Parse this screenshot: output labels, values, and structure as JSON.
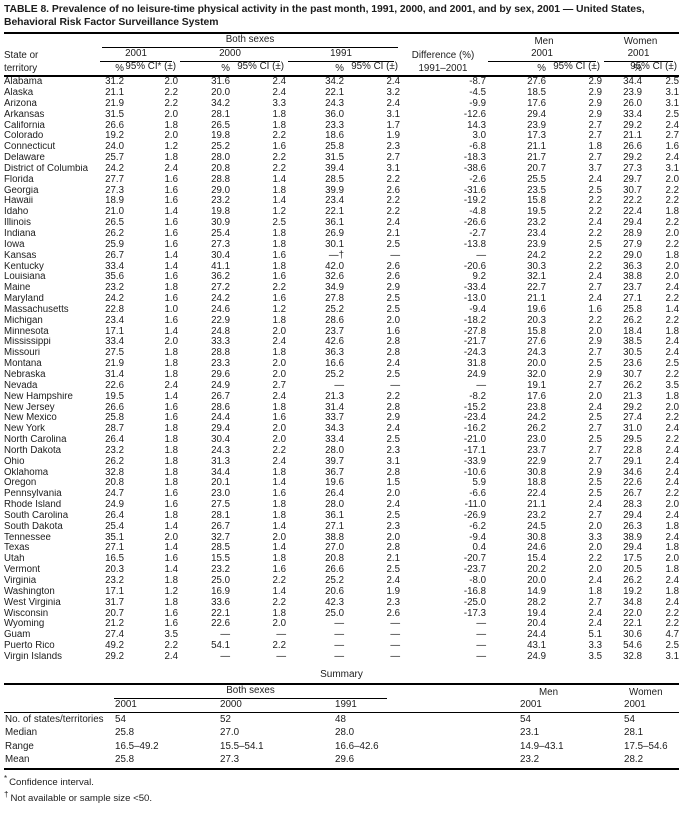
{
  "title": "TABLE 8. Prevalence of no leisure-time physical activity in the past month, 1991, 2000, and 2001, and by sex, 2001 — United States, Behavioral Risk Factor Surveillance System",
  "table": {
    "group_headers": {
      "both_sexes": "Both sexes",
      "men": "Men",
      "women": "Women",
      "difference": "Difference (%)"
    },
    "col_headers": {
      "state_line1": "State or",
      "state_line2": "territory",
      "y2001": "2001",
      "y2000": "2000",
      "y1991": "1991",
      "men_year": "2001",
      "women_year": "2001",
      "pct": "%",
      "ci_star": "95% CI* (±)",
      "ci": "95% CI (±)",
      "diff_years": "1991–2001"
    },
    "rows": [
      [
        "Alabama",
        "31.2",
        "2.0",
        "31.6",
        "2.4",
        "34.2",
        "2.4",
        "-8.7",
        "27.6",
        "2.9",
        "34.4",
        "2.5"
      ],
      [
        "Alaska",
        "21.1",
        "2.2",
        "20.0",
        "2.4",
        "22.1",
        "3.2",
        "-4.5",
        "18.5",
        "2.9",
        "23.9",
        "3.1"
      ],
      [
        "Arizona",
        "21.9",
        "2.2",
        "34.2",
        "3.3",
        "24.3",
        "2.4",
        "-9.9",
        "17.6",
        "2.9",
        "26.0",
        "3.1"
      ],
      [
        "Arkansas",
        "31.5",
        "2.0",
        "28.1",
        "1.8",
        "36.0",
        "3.1",
        "-12.6",
        "29.4",
        "2.9",
        "33.4",
        "2.5"
      ],
      [
        "California",
        "26.6",
        "1.8",
        "26.5",
        "1.8",
        "23.3",
        "1.7",
        "14.3",
        "23.9",
        "2.7",
        "29.2",
        "2.4"
      ],
      [
        "Colorado",
        "19.2",
        "2.0",
        "19.8",
        "2.2",
        "18.6",
        "1.9",
        "3.0",
        "17.3",
        "2.7",
        "21.1",
        "2.7"
      ],
      [
        "Connecticut",
        "24.0",
        "1.2",
        "25.2",
        "1.6",
        "25.8",
        "2.3",
        "-6.8",
        "21.1",
        "1.8",
        "26.6",
        "1.6"
      ],
      [
        "Delaware",
        "25.7",
        "1.8",
        "28.0",
        "2.2",
        "31.5",
        "2.7",
        "-18.3",
        "21.7",
        "2.7",
        "29.2",
        "2.4"
      ],
      [
        "District of Columbia",
        "24.2",
        "2.4",
        "20.8",
        "2.2",
        "39.4",
        "3.1",
        "-38.6",
        "20.7",
        "3.7",
        "27.3",
        "3.1"
      ],
      [
        "Florida",
        "27.7",
        "1.6",
        "28.8",
        "1.4",
        "28.5",
        "2.2",
        "-2.6",
        "25.5",
        "2.4",
        "29.7",
        "2.0"
      ],
      [
        "Georgia",
        "27.3",
        "1.6",
        "29.0",
        "1.8",
        "39.9",
        "2.6",
        "-31.6",
        "23.5",
        "2.5",
        "30.7",
        "2.2"
      ],
      [
        "Hawaii",
        "18.9",
        "1.6",
        "23.2",
        "1.4",
        "23.4",
        "2.2",
        "-19.2",
        "15.8",
        "2.2",
        "22.2",
        "2.2"
      ],
      [
        "Idaho",
        "21.0",
        "1.4",
        "19.8",
        "1.2",
        "22.1",
        "2.2",
        "-4.8",
        "19.5",
        "2.2",
        "22.4",
        "1.8"
      ],
      [
        "Illinois",
        "26.5",
        "1.6",
        "30.9",
        "2.5",
        "36.1",
        "2.4",
        "-26.6",
        "23.2",
        "2.4",
        "29.4",
        "2.2"
      ],
      [
        "Indiana",
        "26.2",
        "1.6",
        "25.4",
        "1.8",
        "26.9",
        "2.1",
        "-2.7",
        "23.4",
        "2.2",
        "28.9",
        "2.0"
      ],
      [
        "Iowa",
        "25.9",
        "1.6",
        "27.3",
        "1.8",
        "30.1",
        "2.5",
        "-13.8",
        "23.9",
        "2.5",
        "27.9",
        "2.2"
      ],
      [
        "Kansas",
        "26.7",
        "1.4",
        "30.4",
        "1.6",
        "—†",
        "—",
        "—",
        "24.2",
        "2.2",
        "29.0",
        "1.8"
      ],
      [
        "Kentucky",
        "33.4",
        "1.4",
        "41.1",
        "1.8",
        "42.0",
        "2.6",
        "-20.6",
        "30.3",
        "2.2",
        "36.3",
        "2.0"
      ],
      [
        "Louisiana",
        "35.6",
        "1.6",
        "36.2",
        "1.6",
        "32.6",
        "2.6",
        "9.2",
        "32.1",
        "2.4",
        "38.8",
        "2.0"
      ],
      [
        "Maine",
        "23.2",
        "1.8",
        "27.2",
        "2.2",
        "34.9",
        "2.9",
        "-33.4",
        "22.7",
        "2.7",
        "23.7",
        "2.4"
      ],
      [
        "Maryland",
        "24.2",
        "1.6",
        "24.2",
        "1.6",
        "27.8",
        "2.5",
        "-13.0",
        "21.1",
        "2.4",
        "27.1",
        "2.2"
      ],
      [
        "Massachusetts",
        "22.8",
        "1.0",
        "24.6",
        "1.2",
        "25.2",
        "2.5",
        "-9.4",
        "19.6",
        "1.6",
        "25.8",
        "1.4"
      ],
      [
        "Michigan",
        "23.4",
        "1.6",
        "22.9",
        "1.8",
        "28.6",
        "2.0",
        "-18.2",
        "20.3",
        "2.2",
        "26.2",
        "2.2"
      ],
      [
        "Minnesota",
        "17.1",
        "1.4",
        "24.8",
        "2.0",
        "23.7",
        "1.6",
        "-27.8",
        "15.8",
        "2.0",
        "18.4",
        "1.8"
      ],
      [
        "Mississippi",
        "33.4",
        "2.0",
        "33.3",
        "2.4",
        "42.6",
        "2.8",
        "-21.7",
        "27.6",
        "2.9",
        "38.5",
        "2.4"
      ],
      [
        "Missouri",
        "27.5",
        "1.8",
        "28.8",
        "1.8",
        "36.3",
        "2.8",
        "-24.3",
        "24.3",
        "2.7",
        "30.5",
        "2.4"
      ],
      [
        "Montana",
        "21.9",
        "1.8",
        "23.3",
        "2.0",
        "16.6",
        "2.4",
        "31.8",
        "20.0",
        "2.5",
        "23.6",
        "2.5"
      ],
      [
        "Nebraska",
        "31.4",
        "1.8",
        "29.6",
        "2.0",
        "25.2",
        "2.5",
        "24.9",
        "32.0",
        "2.9",
        "30.7",
        "2.2"
      ],
      [
        "Nevada",
        "22.6",
        "2.4",
        "24.9",
        "2.7",
        "—",
        "—",
        "—",
        "19.1",
        "2.7",
        "26.2",
        "3.5"
      ],
      [
        "New Hampshire",
        "19.5",
        "1.4",
        "26.7",
        "2.4",
        "21.3",
        "2.2",
        "-8.2",
        "17.6",
        "2.0",
        "21.3",
        "1.8"
      ],
      [
        "New Jersey",
        "26.6",
        "1.6",
        "28.6",
        "1.8",
        "31.4",
        "2.8",
        "-15.2",
        "23.8",
        "2.4",
        "29.2",
        "2.0"
      ],
      [
        "New Mexico",
        "25.8",
        "1.6",
        "24.4",
        "1.6",
        "33.7",
        "2.9",
        "-23.4",
        "24.2",
        "2.5",
        "27.4",
        "2.2"
      ],
      [
        "New York",
        "28.7",
        "1.8",
        "29.4",
        "2.0",
        "34.3",
        "2.4",
        "-16.2",
        "26.2",
        "2.7",
        "31.0",
        "2.4"
      ],
      [
        "North Carolina",
        "26.4",
        "1.8",
        "30.4",
        "2.0",
        "33.4",
        "2.5",
        "-21.0",
        "23.0",
        "2.5",
        "29.5",
        "2.2"
      ],
      [
        "North Dakota",
        "23.2",
        "1.8",
        "24.3",
        "2.2",
        "28.0",
        "2.3",
        "-17.1",
        "23.7",
        "2.7",
        "22.8",
        "2.4"
      ],
      [
        "Ohio",
        "26.2",
        "1.8",
        "31.3",
        "2.4",
        "39.7",
        "3.1",
        "-33.9",
        "22.9",
        "2.7",
        "29.1",
        "2.4"
      ],
      [
        "Oklahoma",
        "32.8",
        "1.8",
        "34.4",
        "1.8",
        "36.7",
        "2.8",
        "-10.6",
        "30.8",
        "2.9",
        "34.6",
        "2.4"
      ],
      [
        "Oregon",
        "20.8",
        "1.8",
        "20.1",
        "1.4",
        "19.6",
        "1.5",
        "5.9",
        "18.8",
        "2.5",
        "22.6",
        "2.4"
      ],
      [
        "Pennsylvania",
        "24.7",
        "1.6",
        "23.0",
        "1.6",
        "26.4",
        "2.0",
        "-6.6",
        "22.4",
        "2.5",
        "26.7",
        "2.2"
      ],
      [
        "Rhode Island",
        "24.9",
        "1.6",
        "27.5",
        "1.8",
        "28.0",
        "2.4",
        "-11.0",
        "21.1",
        "2.4",
        "28.3",
        "2.0"
      ],
      [
        "South Carolina",
        "26.4",
        "1.8",
        "28.1",
        "1.8",
        "36.1",
        "2.5",
        "-26.9",
        "23.2",
        "2.7",
        "29.4",
        "2.4"
      ],
      [
        "South Dakota",
        "25.4",
        "1.4",
        "26.7",
        "1.4",
        "27.1",
        "2.3",
        "-6.2",
        "24.5",
        "2.0",
        "26.3",
        "1.8"
      ],
      [
        "Tennessee",
        "35.1",
        "2.0",
        "32.7",
        "2.0",
        "38.8",
        "2.0",
        "-9.4",
        "30.8",
        "3.3",
        "38.9",
        "2.4"
      ],
      [
        "Texas",
        "27.1",
        "1.4",
        "28.5",
        "1.4",
        "27.0",
        "2.8",
        "0.4",
        "24.6",
        "2.0",
        "29.4",
        "1.8"
      ],
      [
        "Utah",
        "16.5",
        "1.6",
        "15.5",
        "1.8",
        "20.8",
        "2.1",
        "-20.7",
        "15.4",
        "2.2",
        "17.5",
        "2.0"
      ],
      [
        "Vermont",
        "20.3",
        "1.4",
        "23.2",
        "1.6",
        "26.6",
        "2.5",
        "-23.7",
        "20.2",
        "2.0",
        "20.5",
        "1.8"
      ],
      [
        "Virginia",
        "23.2",
        "1.8",
        "25.0",
        "2.2",
        "25.2",
        "2.4",
        "-8.0",
        "20.0",
        "2.4",
        "26.2",
        "2.4"
      ],
      [
        "Washington",
        "17.1",
        "1.2",
        "16.9",
        "1.4",
        "20.6",
        "1.9",
        "-16.8",
        "14.9",
        "1.8",
        "19.2",
        "1.8"
      ],
      [
        "West Virginia",
        "31.7",
        "1.8",
        "33.6",
        "2.2",
        "42.3",
        "2.3",
        "-25.0",
        "28.2",
        "2.7",
        "34.8",
        "2.4"
      ],
      [
        "Wisconsin",
        "20.7",
        "1.6",
        "22.1",
        "1.8",
        "25.0",
        "2.6",
        "-17.3",
        "19.4",
        "2.4",
        "22.0",
        "2.2"
      ],
      [
        "Wyoming",
        "21.2",
        "1.6",
        "22.6",
        "2.0",
        "—",
        "—",
        "—",
        "20.4",
        "2.4",
        "22.1",
        "2.2"
      ],
      [
        "Guam",
        "27.4",
        "3.5",
        "—",
        "—",
        "—",
        "—",
        "—",
        "24.4",
        "5.1",
        "30.6",
        "4.7"
      ],
      [
        "Puerto Rico",
        "49.2",
        "2.2",
        "54.1",
        "2.2",
        "—",
        "—",
        "—",
        "43.1",
        "3.3",
        "54.6",
        "2.5"
      ],
      [
        "Virgin Islands",
        "29.2",
        "2.4",
        "—",
        "—",
        "—",
        "—",
        "—",
        "24.9",
        "3.5",
        "32.8",
        "3.1"
      ]
    ]
  },
  "summary": {
    "title": "Summary",
    "both_sexes": "Both sexes",
    "men": "Men",
    "women": "Women",
    "y2001": "2001",
    "y2000": "2000",
    "y1991": "1991",
    "men_year": "2001",
    "women_year": "2001",
    "rows": [
      {
        "label": "No. of states/territories",
        "values": [
          "54",
          "52",
          "48",
          "54",
          "54"
        ]
      },
      {
        "label": "Median",
        "values": [
          "25.8",
          "27.0",
          "28.0",
          "23.1",
          "28.1"
        ]
      },
      {
        "label": "Range",
        "values": [
          "16.5–49.2",
          "15.5–54.1",
          "16.6–42.6",
          "14.9–43.1",
          "17.5–54.6"
        ]
      },
      {
        "label": "Mean",
        "values": [
          "25.8",
          "27.3",
          "29.6",
          "23.2",
          "28.2"
        ]
      }
    ]
  },
  "footnotes": [
    {
      "marker": "*",
      "text": "Confidence interval."
    },
    {
      "marker": "†",
      "text": "Not available or sample size <50."
    }
  ]
}
